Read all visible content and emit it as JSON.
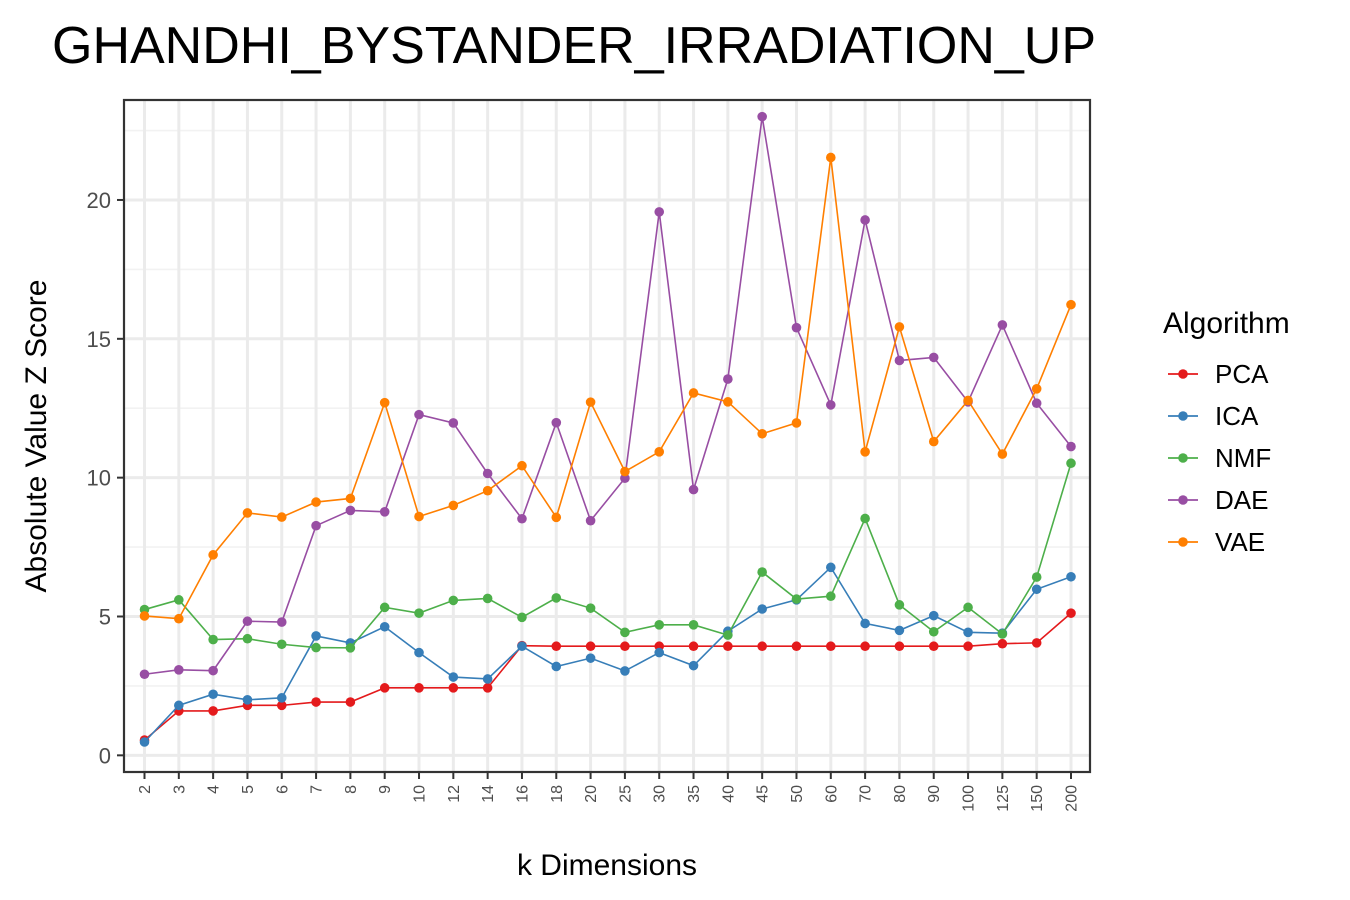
{
  "chart_data": {
    "type": "line",
    "title": "GHANDHI_BYSTANDER_IRRADIATION_UP",
    "xlabel": "k Dimensions",
    "ylabel": "Absolute Value Z Score",
    "categories": [
      "2",
      "3",
      "4",
      "5",
      "6",
      "7",
      "8",
      "9",
      "10",
      "12",
      "14",
      "16",
      "18",
      "20",
      "25",
      "30",
      "35",
      "40",
      "45",
      "50",
      "60",
      "70",
      "80",
      "90",
      "100",
      "125",
      "150",
      "200"
    ],
    "ylim": [
      -0.6,
      23.6
    ],
    "yticks": [
      0,
      5,
      10,
      15,
      20
    ],
    "ytick_labels": [
      "0",
      "5",
      "10",
      "15",
      "20"
    ],
    "grid": true,
    "legend": {
      "title": "Algorithm",
      "position": "right"
    },
    "series": [
      {
        "name": "PCA",
        "color": "#E41A1C",
        "values": [
          0.55,
          1.6,
          1.6,
          1.8,
          1.8,
          1.92,
          1.92,
          2.43,
          2.43,
          2.43,
          2.43,
          3.95,
          3.93,
          3.93,
          3.93,
          3.93,
          3.93,
          3.93,
          3.93,
          3.93,
          3.93,
          3.93,
          3.93,
          3.93,
          3.93,
          4.02,
          4.05,
          5.12
        ]
      },
      {
        "name": "ICA",
        "color": "#377EB8",
        "values": [
          0.48,
          1.8,
          2.2,
          2.0,
          2.07,
          4.3,
          4.05,
          4.63,
          3.7,
          2.82,
          2.75,
          3.93,
          3.2,
          3.5,
          3.04,
          3.7,
          3.23,
          4.47,
          5.27,
          5.6,
          6.77,
          4.75,
          4.5,
          5.03,
          4.43,
          4.4,
          5.98,
          6.43
        ]
      },
      {
        "name": "NMF",
        "color": "#4DAF4A",
        "values": [
          5.25,
          5.6,
          4.17,
          4.2,
          4.0,
          3.88,
          3.87,
          5.33,
          5.12,
          5.58,
          5.65,
          4.97,
          5.67,
          5.3,
          4.43,
          4.7,
          4.7,
          4.33,
          6.6,
          5.63,
          5.73,
          8.53,
          5.42,
          4.45,
          5.33,
          4.37,
          6.42,
          10.52
        ]
      },
      {
        "name": "DAE",
        "color": "#984EA3",
        "values": [
          2.92,
          3.08,
          3.05,
          4.83,
          4.8,
          8.27,
          8.82,
          8.77,
          12.27,
          11.97,
          10.15,
          8.52,
          11.98,
          8.45,
          9.98,
          19.57,
          9.57,
          13.55,
          23.0,
          15.4,
          12.62,
          19.28,
          14.22,
          14.33,
          12.73,
          15.5,
          12.68,
          11.12
        ]
      },
      {
        "name": "VAE",
        "color": "#FF7F00",
        "values": [
          5.02,
          4.92,
          7.22,
          8.73,
          8.58,
          9.12,
          9.25,
          12.7,
          8.6,
          9.0,
          9.53,
          10.43,
          8.57,
          12.72,
          10.22,
          10.93,
          13.05,
          12.73,
          11.58,
          11.97,
          21.53,
          10.93,
          15.43,
          11.3,
          12.78,
          10.85,
          13.2,
          16.23
        ]
      }
    ]
  }
}
